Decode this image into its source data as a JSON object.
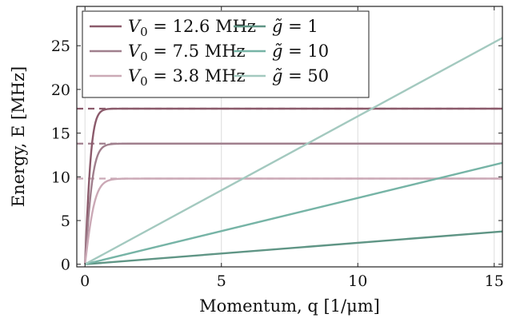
{
  "chart_data": {
    "type": "line",
    "xlabel": "Momentum, q [1/μm]",
    "ylabel": "Energy, E [MHz]",
    "xlim": [
      -0.3,
      15.3
    ],
    "ylim": [
      -0.3,
      29.5
    ],
    "xticks": [
      0,
      5,
      10,
      15
    ],
    "yticks": [
      0,
      5,
      10,
      15,
      20,
      25
    ],
    "grid": "vertical",
    "legend_position": "top-left",
    "series": [
      {
        "name": "V0 = 12.6 MHz",
        "label_main": "V",
        "label_sub": "0",
        "label_rest": " = 12.6 MHz",
        "kind": "saturating",
        "asymptote": 17.8,
        "rate": 4.0,
        "color": "#8b5a6b",
        "x": [
          0,
          0.1,
          0.2,
          0.3,
          0.5,
          0.8,
          1.2,
          2,
          3,
          5,
          8,
          12,
          15.3
        ],
        "y": [
          0,
          6.9,
          11.1,
          13.7,
          16.1,
          17.1,
          17.7,
          17.8,
          17.8,
          17.8,
          17.8,
          17.8,
          17.8
        ]
      },
      {
        "name": "V0 = 7.5 MHz",
        "label_main": "V",
        "label_sub": "0",
        "label_rest": " = 7.5 MHz",
        "kind": "saturating",
        "asymptote": 13.8,
        "rate": 3.2,
        "color": "#a07f8d",
        "x": [
          0,
          0.1,
          0.2,
          0.3,
          0.5,
          0.8,
          1.2,
          2,
          3,
          5,
          8,
          12,
          15.3
        ],
        "y": [
          0,
          4.1,
          6.9,
          8.8,
          11.2,
          12.7,
          13.5,
          13.8,
          13.8,
          13.8,
          13.8,
          13.8,
          13.8
        ]
      },
      {
        "name": "V0 = 3.8 MHz",
        "label_main": "V",
        "label_sub": "0",
        "label_rest": " = 3.8 MHz",
        "kind": "saturating",
        "asymptote": 9.8,
        "rate": 2.6,
        "color": "#cba9b6",
        "x": [
          0,
          0.1,
          0.2,
          0.3,
          0.5,
          0.8,
          1.2,
          2,
          3,
          5,
          8,
          12,
          15.3
        ],
        "y": [
          0,
          2.3,
          4.0,
          5.3,
          7.1,
          8.6,
          9.4,
          9.8,
          9.8,
          9.8,
          9.8,
          9.8,
          9.8
        ]
      },
      {
        "name": "g̃ = 1",
        "label_main": "g̃",
        "label_sub": "",
        "label_rest": " = 1",
        "kind": "linear",
        "color": "#5f9585",
        "x": [
          0,
          15.3
        ],
        "y": [
          0,
          3.75
        ]
      },
      {
        "name": "g̃ = 10",
        "label_main": "g̃",
        "label_sub": "",
        "label_rest": " = 10",
        "kind": "linear",
        "color": "#76b4a6",
        "x": [
          0,
          15.3
        ],
        "y": [
          0,
          11.6
        ]
      },
      {
        "name": "g̃ = 50",
        "label_main": "g̃",
        "label_sub": "",
        "label_rest": " = 50",
        "kind": "linear",
        "color": "#a3c9bf",
        "x": [
          0,
          15.3
        ],
        "y": [
          0,
          25.9
        ]
      }
    ],
    "reference_lines": [
      {
        "y": 17.8,
        "style": "dashed",
        "color": "#8b5a6b"
      },
      {
        "y": 13.8,
        "style": "dashed",
        "color": "#a07f8d"
      },
      {
        "y": 9.8,
        "style": "dashed",
        "color": "#cba9b6"
      }
    ]
  }
}
